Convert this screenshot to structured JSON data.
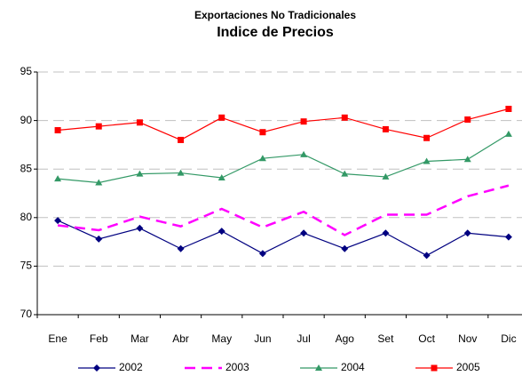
{
  "chart_data": {
    "type": "line",
    "title": "Exportaciones No Tradicionales",
    "subtitle": "Indice de Precios",
    "categories": [
      "Ene",
      "Feb",
      "Mar",
      "Abr",
      "May",
      "Jun",
      "Jul",
      "Ago",
      "Set",
      "Oct",
      "Nov",
      "Dic"
    ],
    "series": [
      {
        "name": "2002",
        "color": "#000080",
        "marker": "diamond",
        "dash": false,
        "values": [
          79.7,
          77.8,
          78.9,
          76.8,
          78.6,
          76.3,
          78.4,
          76.8,
          78.4,
          76.1,
          78.4,
          78.0
        ]
      },
      {
        "name": "2003",
        "color": "#ff00ff",
        "marker": "none",
        "dash": true,
        "values": [
          79.2,
          78.7,
          80.1,
          79.1,
          80.9,
          79.0,
          80.6,
          78.2,
          80.3,
          80.3,
          82.2,
          83.3
        ]
      },
      {
        "name": "2004",
        "color": "#339966",
        "marker": "triangle",
        "dash": false,
        "values": [
          84.0,
          83.6,
          84.5,
          84.6,
          84.1,
          86.1,
          86.5,
          84.5,
          84.2,
          85.8,
          86.0,
          88.6
        ]
      },
      {
        "name": "2005",
        "color": "#ff0000",
        "marker": "square",
        "dash": false,
        "values": [
          89.0,
          89.4,
          89.8,
          88.0,
          90.3,
          88.8,
          89.9,
          90.3,
          89.1,
          88.2,
          90.1,
          91.2
        ]
      }
    ],
    "ylim": [
      70,
      95
    ],
    "yticks": [
      70,
      75,
      80,
      85,
      90,
      95
    ],
    "grid": true,
    "legend": "bottom"
  }
}
